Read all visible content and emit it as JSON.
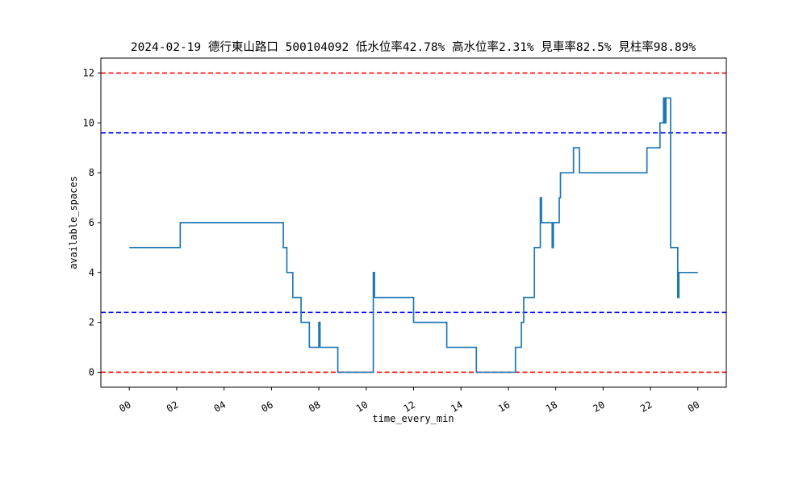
{
  "chart_data": {
    "type": "line",
    "title": "2024-02-19 德行東山路口 500104092 低水位率42.78% 高水位率2.31% 見車率82.5% 見柱率98.89%",
    "xlabel": "time_every_min",
    "ylabel": "available_spaces",
    "xlim_hours": [
      -1.2,
      25.2
    ],
    "ylim": [
      -0.6,
      12.6
    ],
    "x_ticks": [
      {
        "hour": 0,
        "label": "00"
      },
      {
        "hour": 2,
        "label": "02"
      },
      {
        "hour": 4,
        "label": "04"
      },
      {
        "hour": 6,
        "label": "06"
      },
      {
        "hour": 8,
        "label": "08"
      },
      {
        "hour": 10,
        "label": "10"
      },
      {
        "hour": 12,
        "label": "12"
      },
      {
        "hour": 14,
        "label": "14"
      },
      {
        "hour": 16,
        "label": "16"
      },
      {
        "hour": 18,
        "label": "18"
      },
      {
        "hour": 20,
        "label": "20"
      },
      {
        "hour": 22,
        "label": "22"
      },
      {
        "hour": 24,
        "label": "00"
      }
    ],
    "y_ticks": [
      {
        "value": 0,
        "label": "0"
      },
      {
        "value": 2,
        "label": "2"
      },
      {
        "value": 4,
        "label": "4"
      },
      {
        "value": 6,
        "label": "6"
      },
      {
        "value": 8,
        "label": "8"
      },
      {
        "value": 10,
        "label": "10"
      },
      {
        "value": 12,
        "label": "12"
      }
    ],
    "reference_lines": [
      {
        "name": "max-capacity-line",
        "value": 12,
        "color": "#ff0000",
        "style": "dashed"
      },
      {
        "name": "high-threshold-line",
        "value": 9.6,
        "color": "#0000ff",
        "style": "dashed"
      },
      {
        "name": "low-threshold-line",
        "value": 2.4,
        "color": "#0000ff",
        "style": "dashed"
      },
      {
        "name": "zero-line",
        "value": 0,
        "color": "#ff0000",
        "style": "dashed"
      }
    ],
    "series": [
      {
        "name": "available_spaces",
        "color": "#1f77b4",
        "step": "post",
        "points": [
          [
            0.0,
            5
          ],
          [
            2.15,
            6
          ],
          [
            6.5,
            5
          ],
          [
            6.65,
            4
          ],
          [
            6.9,
            3
          ],
          [
            7.25,
            2
          ],
          [
            7.6,
            1
          ],
          [
            8.0,
            2
          ],
          [
            8.05,
            1
          ],
          [
            8.8,
            0
          ],
          [
            10.3,
            4
          ],
          [
            10.35,
            3
          ],
          [
            12.0,
            2
          ],
          [
            13.4,
            1
          ],
          [
            14.65,
            0
          ],
          [
            16.3,
            1
          ],
          [
            16.55,
            2
          ],
          [
            16.65,
            3
          ],
          [
            17.1,
            5
          ],
          [
            17.35,
            7
          ],
          [
            17.4,
            6
          ],
          [
            17.85,
            5
          ],
          [
            17.9,
            6
          ],
          [
            18.15,
            7
          ],
          [
            18.2,
            8
          ],
          [
            18.75,
            9
          ],
          [
            19.0,
            8
          ],
          [
            21.85,
            9
          ],
          [
            22.4,
            10
          ],
          [
            22.55,
            11
          ],
          [
            22.6,
            10
          ],
          [
            22.65,
            11
          ],
          [
            22.85,
            5
          ],
          [
            23.15,
            3
          ],
          [
            23.2,
            4
          ],
          [
            24.0,
            4
          ]
        ]
      }
    ]
  }
}
